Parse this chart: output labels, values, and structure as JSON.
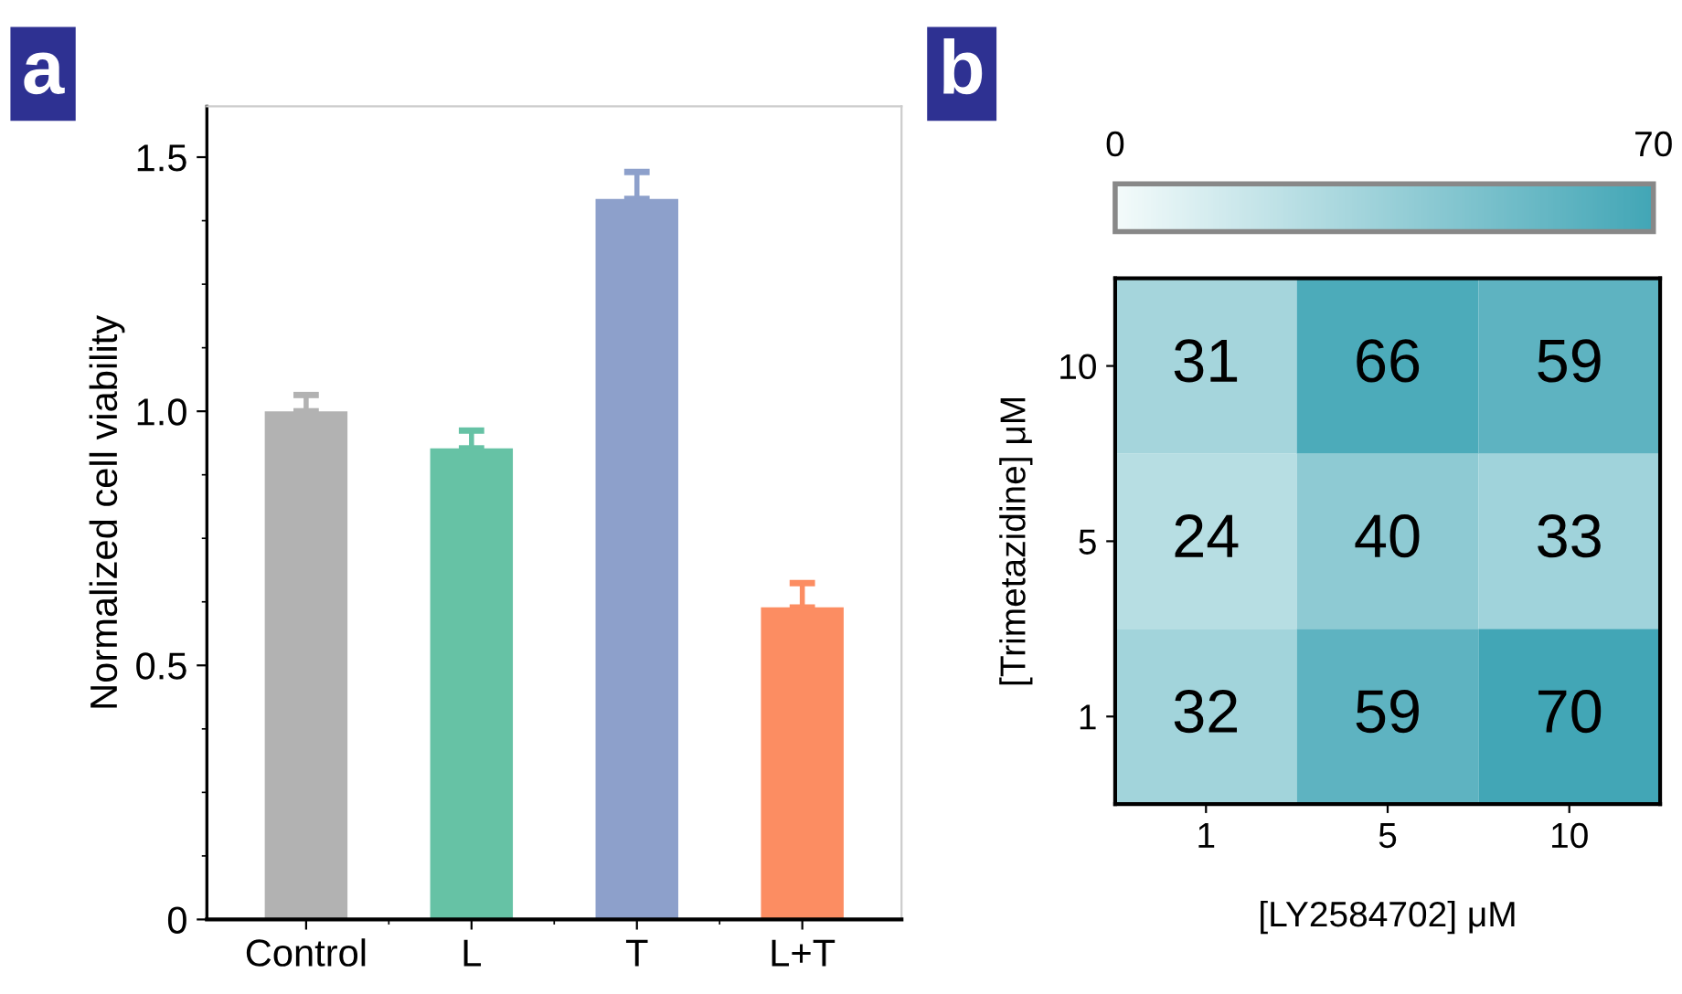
{
  "chart_data": [
    {
      "type": "bar",
      "title": "a",
      "ylabel": "Normalized cell viability",
      "categories": [
        "Control",
        "L",
        "T",
        "L+T"
      ],
      "values": [
        1.0,
        0.927,
        1.418,
        0.614
      ],
      "errors": [
        0.032,
        0.035,
        0.053,
        0.048
      ],
      "colors": [
        "#b2b2b2",
        "#66c2a5",
        "#8da0cb",
        "#fc8d62"
      ],
      "ylim": [
        0,
        1.6
      ],
      "yticks": [
        0,
        0.5,
        {
          "value": 1.0,
          "label": "1.0"
        },
        1.5
      ],
      "grid": false
    },
    {
      "type": "heatmap",
      "title": "b",
      "xlabel": "[LY2584702] μM",
      "ylabel": "[Trimetazidine] μM",
      "categories": [
        "1",
        "5",
        "10"
      ],
      "y_categories": [
        "10",
        "5",
        "1"
      ],
      "cells": [
        [
          31,
          66,
          59
        ],
        [
          24,
          40,
          33
        ],
        [
          32,
          59,
          70
        ]
      ],
      "clim": [
        0,
        70
      ],
      "cticks": [
        0,
        70
      ],
      "data_labels": true
    }
  ]
}
